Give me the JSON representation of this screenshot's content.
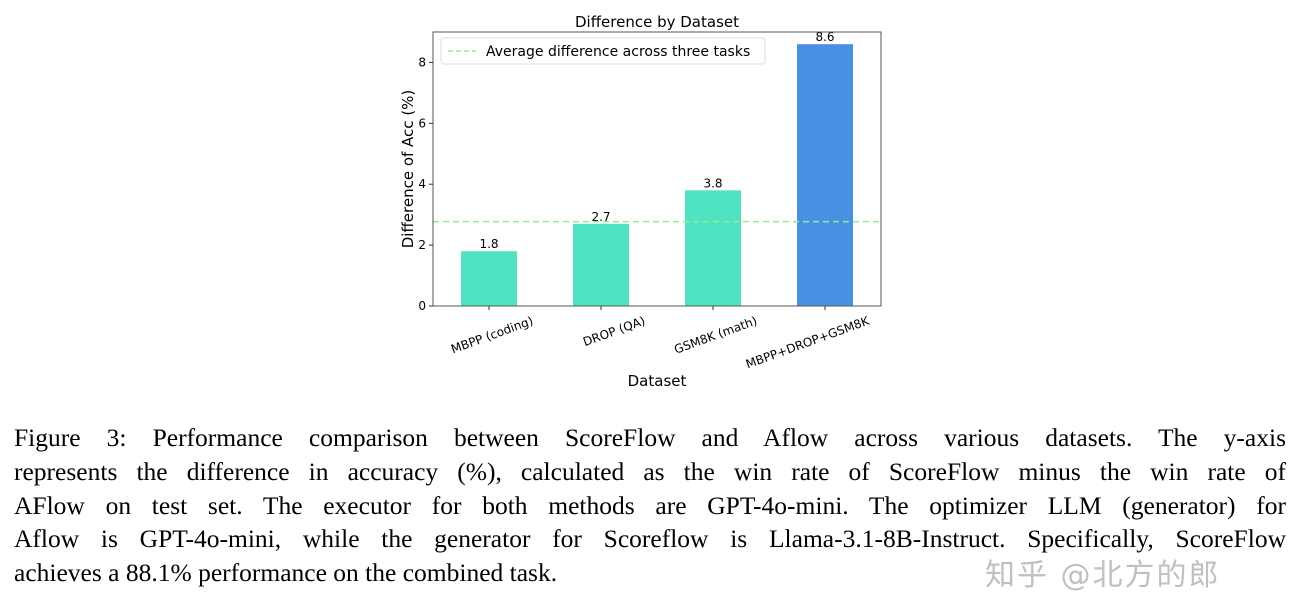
{
  "chart_data": {
    "type": "bar",
    "title": "Difference by Dataset",
    "xlabel": "Dataset",
    "ylabel": "Difference of Acc (%)",
    "categories": [
      "MBPP (coding)",
      "DROP (QA)",
      "GSM8K (math)",
      "MBPP+DROP+GSM8K"
    ],
    "values": [
      1.8,
      2.7,
      3.8,
      8.6
    ],
    "data_labels": [
      "1.8",
      "2.7",
      "3.8",
      "8.6"
    ],
    "bar_colors": [
      "#50E3C2",
      "#50E3C2",
      "#50E3C2",
      "#4A90E2"
    ],
    "ylim": [
      0,
      9.0
    ],
    "yticks": [
      0,
      2,
      4,
      6,
      8
    ],
    "grid": false,
    "reference_line": {
      "name": "Average difference across three tasks",
      "value": 2.77,
      "color": "#90EE90",
      "style": "dashed"
    },
    "legend": {
      "placement": "top-left",
      "entries": [
        "Average difference across three tasks"
      ]
    }
  },
  "caption": {
    "lines": [
      "Figure 3: Performance comparison between ScoreFlow and Aflow across various datasets. The y-axis",
      "represents the difference in accuracy (%), calculated as the win rate of ScoreFlow minus the win rate of",
      "AFlow on test set. The executor for both methods are GPT-4o-mini. The optimizer LLM (generator) for",
      "Aflow is GPT-4o-mini, while the generator for Scoreflow is Llama-3.1-8B-Instruct. Specifically, ScoreFlow",
      "achieves a 88.1% performance on the combined task."
    ]
  },
  "watermark": "知乎 @北方的郎"
}
